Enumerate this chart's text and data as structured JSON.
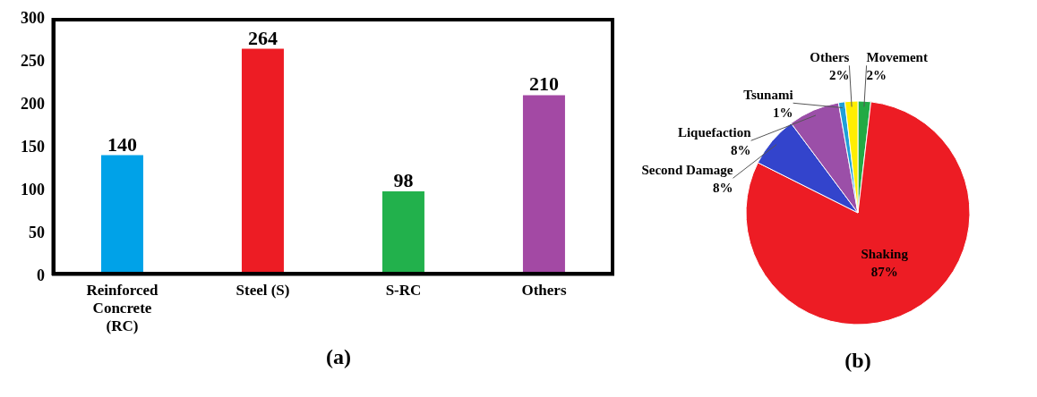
{
  "chart_data": [
    {
      "type": "bar",
      "title": "(a)",
      "categories": [
        "Reinforced Concrete (RC)",
        "Steel (S)",
        "S-RC",
        "Others"
      ],
      "values": [
        140,
        264,
        98,
        210
      ],
      "colors": [
        "#00a2e8",
        "#ed1c24",
        "#22b14c",
        "#a349a4"
      ],
      "ylim": [
        0,
        300
      ],
      "yticks": [
        0,
        50,
        100,
        150,
        200,
        250,
        300
      ],
      "data_labels": true,
      "grid": false,
      "legend": false
    },
    {
      "type": "pie",
      "title": "(b)",
      "categories": [
        "Movement",
        "Shaking",
        "Second Damage",
        "Liquefaction",
        "Tsunami",
        "Others"
      ],
      "values": [
        2,
        87,
        8,
        8,
        1,
        2
      ],
      "value_labels": [
        "2%",
        "87%",
        "8%",
        "8%",
        "1%",
        "2%"
      ],
      "colors": [
        "#22aa44",
        "#ed1c24",
        "#3344cc",
        "#9b4fa8",
        "#1e9fd8",
        "#ffee00"
      ],
      "legend": false
    }
  ]
}
